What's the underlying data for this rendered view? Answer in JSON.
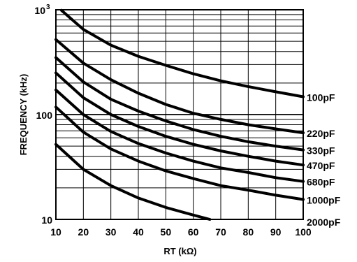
{
  "chart_data": {
    "type": "line",
    "xlabel": "RT (kΩ)",
    "ylabel": "FREQUENCY (kHz)",
    "xlim": [
      10,
      100
    ],
    "ylim": [
      10,
      1000
    ],
    "y_scale": "log",
    "grid": true,
    "legend_placement": "right, labels at curve ends",
    "x_ticks": [
      "10",
      "20",
      "30",
      "40",
      "50",
      "60",
      "70",
      "80",
      "90",
      "100"
    ],
    "y_ticks": [
      {
        "value": 10,
        "label": "10"
      },
      {
        "value": 100,
        "label": "100"
      },
      {
        "value": 1000,
        "label": "10",
        "exponent": "3"
      }
    ],
    "series": [
      {
        "name": "100pF",
        "x": [
          12,
          20,
          30,
          40,
          50,
          60,
          70,
          80,
          90,
          100
        ],
        "y": [
          990,
          650,
          460,
          360,
          295,
          245,
          210,
          185,
          165,
          148
        ]
      },
      {
        "name": "220pF",
        "x": [
          10,
          20,
          30,
          40,
          50,
          60,
          70,
          80,
          90,
          100
        ],
        "y": [
          520,
          310,
          215,
          160,
          125,
          103,
          90,
          80,
          73,
          67
        ]
      },
      {
        "name": "330pF",
        "x": [
          10,
          20,
          30,
          40,
          50,
          60,
          70,
          80,
          90,
          100
        ],
        "y": [
          350,
          205,
          140,
          108,
          87,
          72,
          62,
          55,
          50,
          46
        ]
      },
      {
        "name": "470pF",
        "x": [
          10,
          20,
          30,
          40,
          50,
          60,
          70,
          80,
          90,
          100
        ],
        "y": [
          250,
          145,
          100,
          77,
          62,
          52,
          45,
          40,
          36,
          33
        ]
      },
      {
        "name": "680pF",
        "x": [
          10,
          20,
          30,
          40,
          50,
          60,
          70,
          80,
          90,
          100
        ],
        "y": [
          172,
          100,
          69,
          53,
          43,
          36,
          31,
          28,
          25,
          23
        ]
      },
      {
        "name": "1000pF",
        "x": [
          10,
          20,
          30,
          40,
          50,
          60,
          70,
          80,
          90,
          100
        ],
        "y": [
          118,
          68,
          47,
          36,
          29,
          24.5,
          21,
          19,
          17,
          15.5
        ]
      },
      {
        "name": "2000pF",
        "x": [
          10,
          20,
          30,
          40,
          50,
          60,
          66
        ],
        "y": [
          52,
          30,
          21,
          16,
          13,
          11,
          10
        ]
      }
    ],
    "colors": {
      "line": "#000000",
      "grid": "#000000",
      "background": "#ffffff"
    }
  }
}
